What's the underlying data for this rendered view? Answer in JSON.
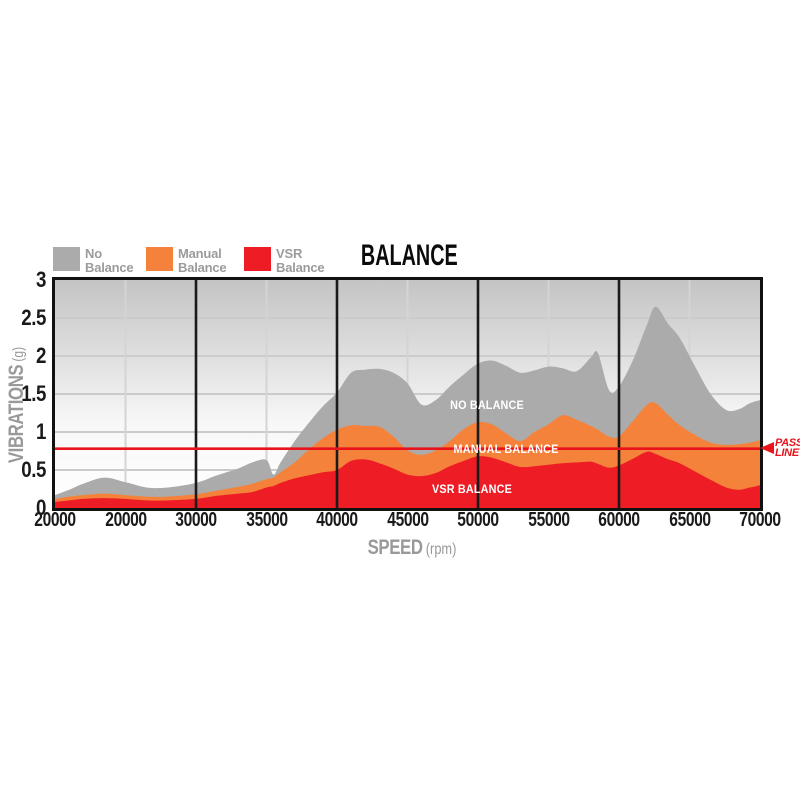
{
  "title": "BALANCE",
  "legend": {
    "items": [
      {
        "name": "No Balance",
        "line1": "No",
        "line2": "Balance",
        "color": "#ABABAB"
      },
      {
        "name": "Manual Balance",
        "line1": "Manual",
        "line2": "Balance",
        "color": "#F5823B"
      },
      {
        "name": "VSR Balance",
        "line1": "VSR",
        "line2": "Balance",
        "color": "#EE1C24"
      }
    ]
  },
  "axes": {
    "y_title": "VIBRATIONS",
    "y_unit": "(g)",
    "x_title": "SPEED",
    "x_unit": "(rpm)",
    "y_ticks": [
      "3",
      "2.5",
      "2",
      "1.5",
      "1",
      "0.5",
      "0"
    ],
    "x_ticks": [
      "20000",
      "20000",
      "30000",
      "35000",
      "40000",
      "45000",
      "50000",
      "55000",
      "60000",
      "65000",
      "70000"
    ]
  },
  "area_labels": {
    "no_balance": "NO BALANCE",
    "manual_balance": "MANUAL BALANCE",
    "vsr_balance": "VSR BALANCE"
  },
  "pass_line": {
    "label": "PASS LINE",
    "value_g": 0.78,
    "color": "#E8131B"
  },
  "colors": {
    "no_balance": "#ABABAB",
    "manual_balance": "#F5823B",
    "vsr_balance": "#EE1C24",
    "grid": "#CBCBCB",
    "grid_light_vertical": "#D4D4D4",
    "major_vertical": "#1A1A1A",
    "frame": "#111111",
    "bg_top": "#C4C4C4",
    "bg_bottom": "#FFFFFF",
    "tick_text": "#1A1A1A",
    "axis_text": "#999999",
    "legend_text": "#9B9B9B"
  },
  "chart_data": {
    "type": "area",
    "title": "BALANCE",
    "xlabel": "SPEED (rpm)",
    "ylabel": "VIBRATIONS (g)",
    "xlim": [
      20000,
      70000
    ],
    "ylim": [
      0,
      3
    ],
    "grid": true,
    "legend_position": "top-left",
    "pass_line_g": 0.78,
    "x_tick_labels_as_shown": [
      "20000",
      "20000",
      "30000",
      "35000",
      "40000",
      "45000",
      "50000",
      "55000",
      "60000",
      "65000",
      "70000"
    ],
    "x_rpm": [
      20000,
      21000,
      22000,
      23500,
      25000,
      26500,
      28000,
      30000,
      31500,
      33000,
      34000,
      35000,
      35500,
      36000,
      37000,
      38000,
      39000,
      40000,
      41000,
      42000,
      43000,
      44000,
      45000,
      46000,
      47000,
      48000,
      49000,
      50000,
      51000,
      52000,
      53000,
      54000,
      55000,
      56000,
      57000,
      58000,
      58500,
      59300,
      60000,
      61000,
      62000,
      62600,
      63500,
      64300,
      65400,
      66500,
      67600,
      68500,
      69300,
      70000
    ],
    "series": [
      {
        "name": "No Balance",
        "color": "#ABABAB",
        "values_g": [
          0.17,
          0.24,
          0.32,
          0.4,
          0.34,
          0.27,
          0.27,
          0.33,
          0.43,
          0.52,
          0.6,
          0.63,
          0.44,
          0.6,
          0.88,
          1.12,
          1.34,
          1.52,
          1.78,
          1.82,
          1.83,
          1.78,
          1.64,
          1.36,
          1.42,
          1.6,
          1.76,
          1.9,
          1.94,
          1.87,
          1.78,
          1.81,
          1.86,
          1.84,
          1.8,
          1.98,
          2.04,
          1.55,
          1.6,
          1.95,
          2.42,
          2.65,
          2.42,
          2.24,
          1.86,
          1.5,
          1.29,
          1.3,
          1.38,
          1.42
        ]
      },
      {
        "name": "Manual Balance",
        "color": "#F5823B",
        "values_g": [
          0.12,
          0.15,
          0.17,
          0.19,
          0.17,
          0.15,
          0.15,
          0.18,
          0.23,
          0.28,
          0.32,
          0.38,
          0.4,
          0.47,
          0.6,
          0.77,
          0.92,
          1.03,
          1.09,
          1.08,
          1.07,
          0.94,
          0.76,
          0.7,
          0.76,
          0.88,
          1.04,
          1.13,
          1.1,
          0.98,
          0.88,
          1.0,
          1.1,
          1.22,
          1.16,
          1.08,
          1.03,
          0.94,
          0.94,
          1.15,
          1.36,
          1.38,
          1.22,
          1.09,
          0.96,
          0.86,
          0.83,
          0.84,
          0.86,
          0.89
        ]
      },
      {
        "name": "VSR Balance",
        "color": "#EE1C24",
        "values_g": [
          0.08,
          0.1,
          0.12,
          0.13,
          0.12,
          0.1,
          0.1,
          0.12,
          0.16,
          0.19,
          0.21,
          0.27,
          0.29,
          0.33,
          0.39,
          0.43,
          0.47,
          0.5,
          0.62,
          0.64,
          0.59,
          0.52,
          0.44,
          0.42,
          0.46,
          0.55,
          0.62,
          0.68,
          0.66,
          0.6,
          0.54,
          0.55,
          0.57,
          0.59,
          0.6,
          0.61,
          0.58,
          0.53,
          0.56,
          0.65,
          0.74,
          0.71,
          0.64,
          0.59,
          0.48,
          0.37,
          0.27,
          0.24,
          0.27,
          0.3
        ]
      }
    ]
  }
}
